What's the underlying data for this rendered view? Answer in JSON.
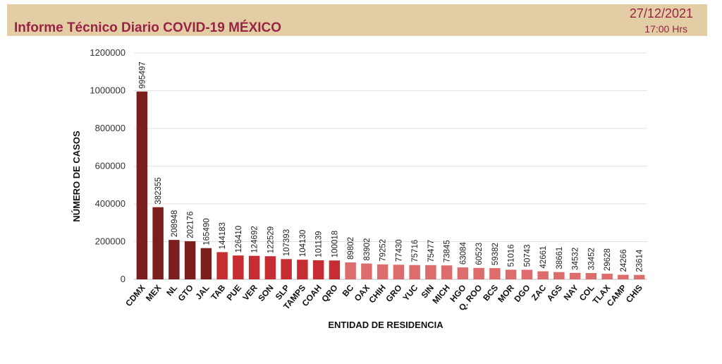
{
  "header": {
    "title": "Informe Técnico Diario COVID-19 MÉXICO",
    "date": "27/12/2021",
    "time": "17:00 Hrs"
  },
  "colors": {
    "header_bg": "#e2cda4",
    "title_color": "#9b2247",
    "bar_dark": "#7b1e1e",
    "bar_mid": "#c62d32",
    "bar_light": "#dd6d6d"
  },
  "chart_data": {
    "type": "bar",
    "xlabel": "ENTIDAD DE RESIDENCIA",
    "ylabel": "NÚMERO DE CASOS",
    "ylim": [
      0,
      1200000
    ],
    "yticks": [
      0,
      200000,
      400000,
      600000,
      800000,
      1000000,
      1200000
    ],
    "grid": true,
    "categories": [
      "CDMX",
      "MEX",
      "NL",
      "GTO",
      "JAL",
      "TAB",
      "PUE",
      "VER",
      "SON",
      "SLP",
      "TAMPS",
      "COAH",
      "QRO",
      "BC",
      "OAX",
      "CHIH",
      "GRO",
      "YUC",
      "SIN",
      "MICH",
      "HGO",
      "Q. ROO",
      "BCS",
      "MOR",
      "DGO",
      "ZAC",
      "AGS",
      "NAY",
      "COL",
      "TLAX",
      "CAMP",
      "CHIS"
    ],
    "values": [
      995497,
      382355,
      208948,
      202176,
      165490,
      144183,
      126410,
      124692,
      122529,
      107393,
      104130,
      101139,
      100018,
      89802,
      83902,
      79252,
      77430,
      75716,
      75477,
      73845,
      63084,
      60523,
      59382,
      51016,
      50743,
      42661,
      38661,
      34532,
      33452,
      29628,
      24266,
      23614
    ]
  }
}
